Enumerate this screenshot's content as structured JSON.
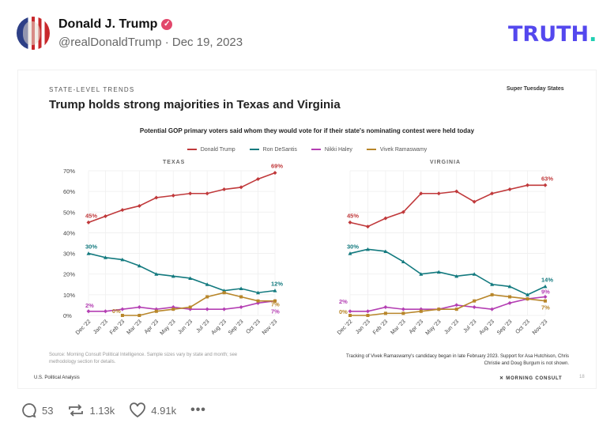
{
  "post": {
    "author_name": "Donald J. Trump",
    "verified_icon": "verified-badge-icon",
    "handle_date": "@realDonaldTrump · Dec 19, 2023",
    "logo_text": "TRUTH",
    "logo_dot": ".",
    "colors": {
      "logo": "#5448ee",
      "logo_dot": "#1fcfb2",
      "verified": "#e2476b"
    }
  },
  "image": {
    "kicker": "STATE-LEVEL TRENDS",
    "corner_label": "Super Tuesday States",
    "title": "Trump holds strong majorities in Texas and Virginia",
    "subtitle": "Potential GOP primary voters said whom they would vote for if their state's nominating contest were held today",
    "source_note": "Source: Morning Consult Political Intelligence. Sample sizes vary by state and month; see methodology section for details.",
    "tracking_note": "Tracking of Vivek Ramaswamy's candidacy began in late February 2023. Support for Asa Hutchison, Chris Christie and Doug Burgum is not shown.",
    "footer_left": "U.S. Political Analysis",
    "footer_brand": "MORNING CONSULT",
    "page_number": "18"
  },
  "chart_data": [
    {
      "type": "line",
      "title": "TEXAS",
      "categories": [
        "Dec '22",
        "Jan '23",
        "Feb '23",
        "Mar '23",
        "Apr '23",
        "May '23",
        "Jun '23",
        "Jul '23",
        "Aug '23",
        "Sep '23",
        "Oct '23",
        "Nov '23"
      ],
      "ylim": [
        0,
        70
      ],
      "yticks": [
        "0%",
        "10%",
        "20%",
        "30%",
        "40%",
        "50%",
        "60%",
        "70%"
      ],
      "grid": true,
      "legend": "top-center",
      "series": [
        {
          "name": "Donald Trump",
          "color": "#c0393b",
          "marker": "diamond",
          "values": [
            45,
            48,
            51,
            53,
            57,
            58,
            59,
            59,
            61,
            62,
            66,
            69
          ],
          "start_label": "45%",
          "end_label": "69%"
        },
        {
          "name": "Ron DeSantis",
          "color": "#137a7f",
          "marker": "triangle",
          "values": [
            30,
            28,
            27,
            24,
            20,
            19,
            18,
            15,
            12,
            13,
            11,
            12
          ],
          "start_label": "30%",
          "end_label": "12%"
        },
        {
          "name": "Nikki Haley",
          "color": "#b43fb3",
          "marker": "diamond",
          "values": [
            2,
            2,
            3,
            4,
            3,
            4,
            3,
            3,
            3,
            4,
            6,
            7
          ],
          "start_label": "2%",
          "end_label": "7%"
        },
        {
          "name": "Vivek Ramaswamy",
          "color": "#b8862a",
          "marker": "square",
          "values": [
            null,
            null,
            0,
            0,
            2,
            3,
            4,
            9,
            11,
            9,
            7,
            7
          ],
          "start_label": "0%",
          "end_label": "7%"
        }
      ]
    },
    {
      "type": "line",
      "title": "VIRGINIA",
      "categories": [
        "Dec '22",
        "Jan '23",
        "Feb '23",
        "Mar '23",
        "Apr '23",
        "May '23",
        "Jun '23",
        "Jul '23",
        "Aug '23",
        "Sep '23",
        "Oct '23",
        "Nov '23"
      ],
      "ylim": [
        0,
        70
      ],
      "grid": true,
      "series": [
        {
          "name": "Donald Trump",
          "color": "#c0393b",
          "marker": "diamond",
          "values": [
            45,
            43,
            47,
            50,
            59,
            59,
            60,
            55,
            59,
            61,
            63,
            63
          ],
          "start_label": "45%",
          "end_label": "63%"
        },
        {
          "name": "Ron DeSantis",
          "color": "#137a7f",
          "marker": "triangle",
          "values": [
            30,
            32,
            31,
            26,
            20,
            21,
            19,
            20,
            15,
            14,
            10,
            14
          ],
          "start_label": "30%",
          "end_label": "14%"
        },
        {
          "name": "Nikki Haley",
          "color": "#b43fb3",
          "marker": "diamond",
          "values": [
            2,
            2,
            4,
            3,
            3,
            3,
            5,
            4,
            3,
            6,
            8,
            9
          ],
          "start_label": "2%",
          "end_label": "9%"
        },
        {
          "name": "Vivek Ramaswamy",
          "color": "#b8862a",
          "marker": "square",
          "values": [
            0,
            0,
            1,
            1,
            2,
            3,
            3,
            7,
            10,
            9,
            8,
            7
          ],
          "start_label": "0%",
          "end_label": "7%"
        }
      ]
    }
  ],
  "actions": {
    "replies": "53",
    "retruths": "1.13k",
    "likes": "4.91k",
    "icons": [
      "comment-icon",
      "retruth-icon",
      "heart-icon",
      "more-icon"
    ]
  }
}
